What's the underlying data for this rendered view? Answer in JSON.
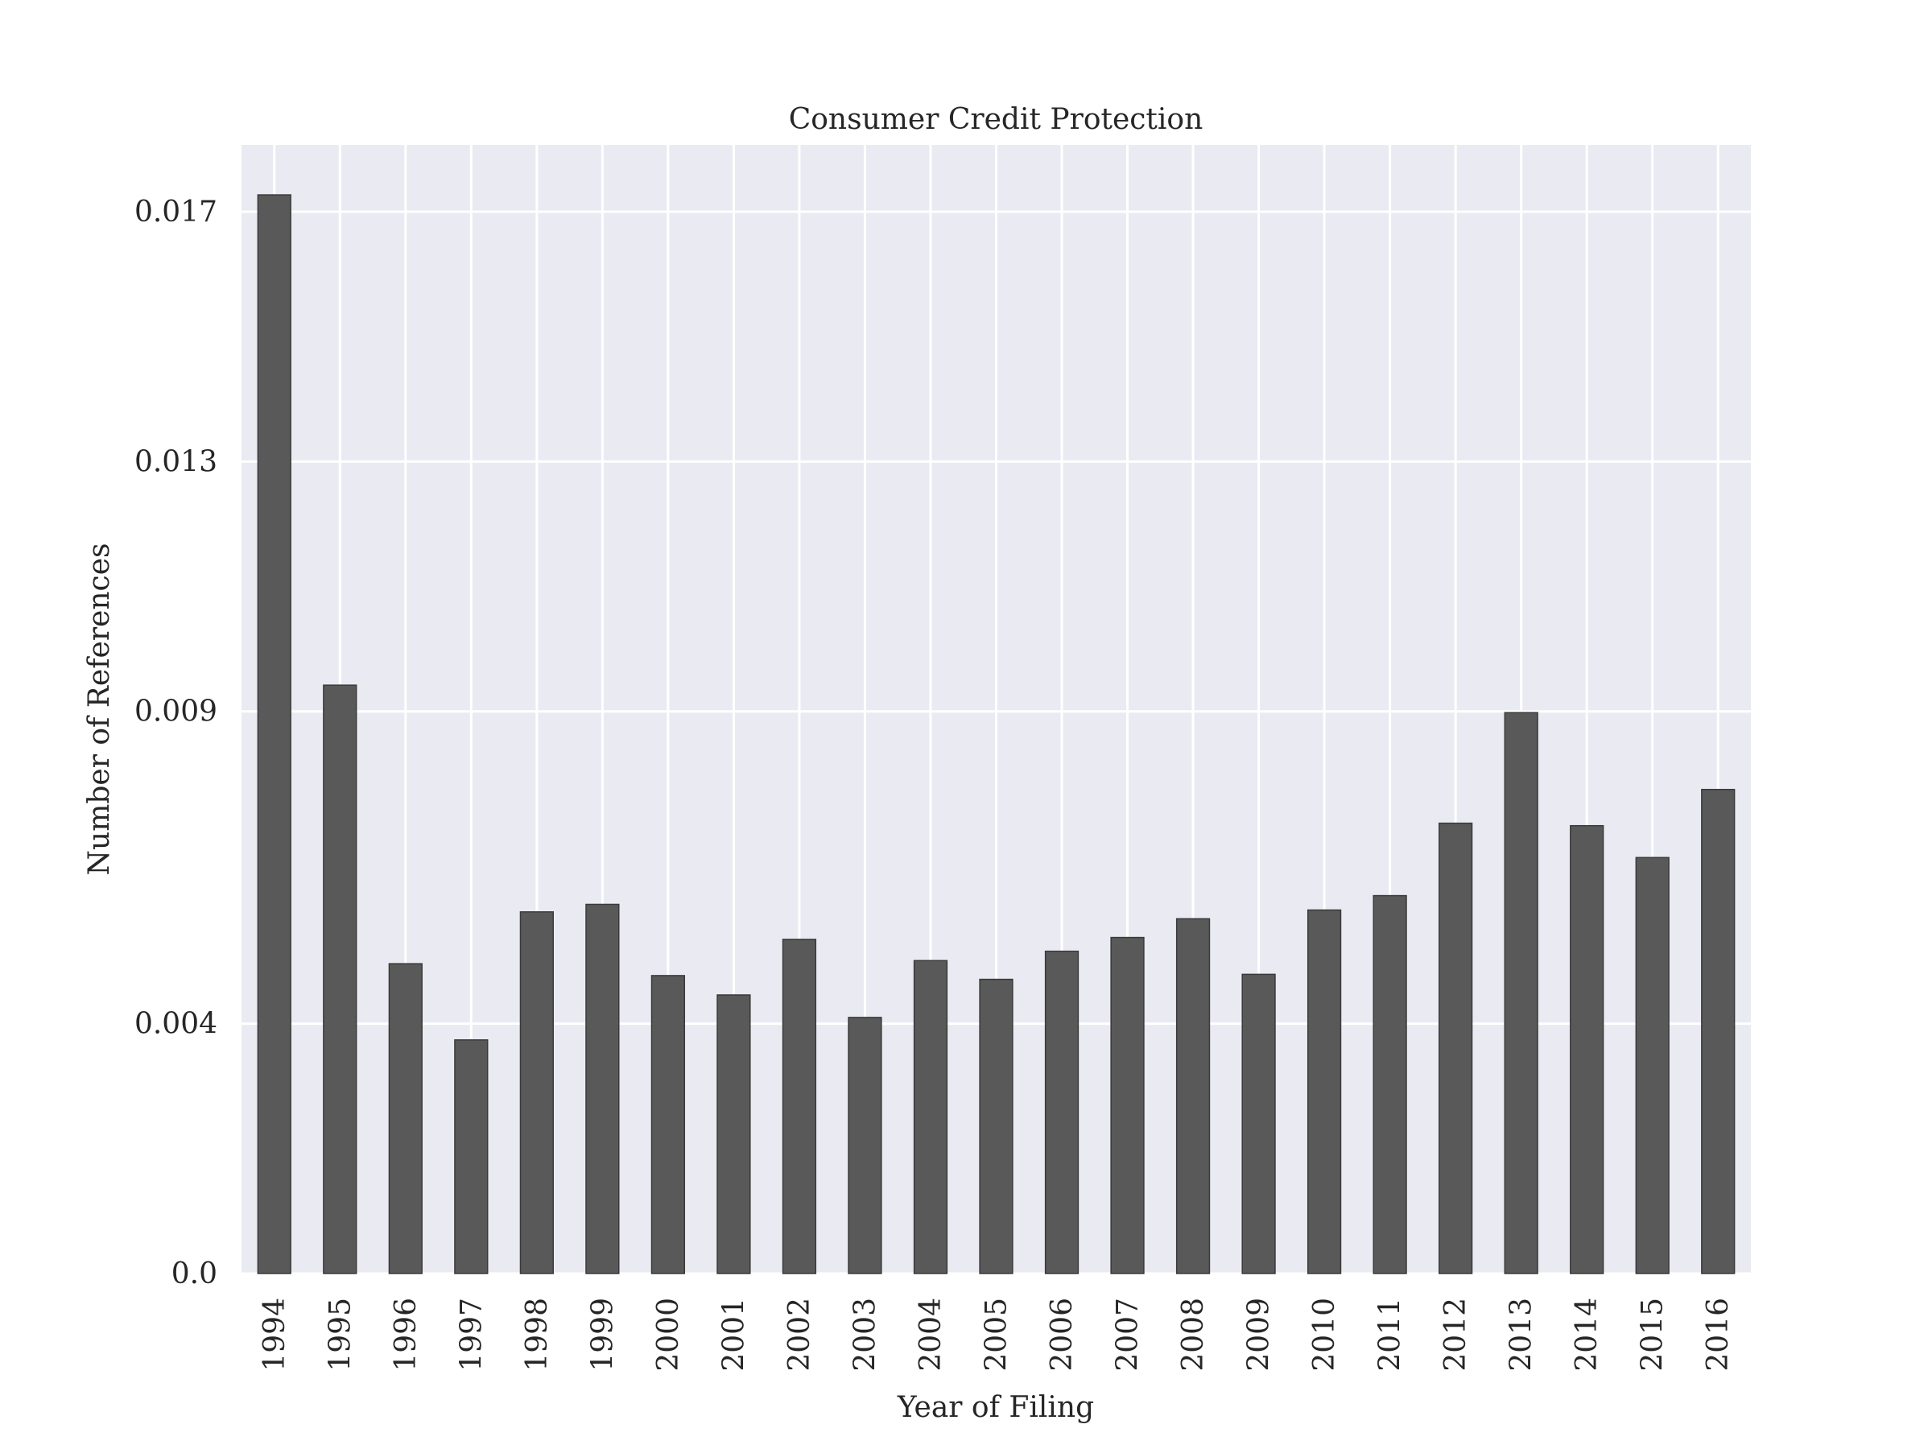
{
  "chart_data": {
    "type": "bar",
    "title": "Consumer Credit Protection",
    "xlabel": "Year of Filing",
    "ylabel": "Number of References",
    "categories": [
      "1994",
      "1995",
      "1996",
      "1997",
      "1998",
      "1999",
      "2000",
      "2001",
      "2002",
      "2003",
      "2004",
      "2005",
      "2006",
      "2007",
      "2008",
      "2009",
      "2010",
      "2011",
      "2012",
      "2013",
      "2014",
      "2015",
      "2016"
    ],
    "values": [
      0.01727,
      0.00942,
      0.00496,
      0.00374,
      0.00579,
      0.00591,
      0.00477,
      0.00446,
      0.00535,
      0.0041,
      0.00501,
      0.00471,
      0.00516,
      0.00538,
      0.00568,
      0.00479,
      0.00582,
      0.00605,
      0.00721,
      0.00898,
      0.00717,
      0.00666,
      0.00775
    ],
    "yticks": [
      0.0,
      0.004,
      0.009,
      0.013,
      0.017
    ],
    "ytick_labels": [
      "0.0",
      "0.004",
      "0.009",
      "0.013",
      "0.017"
    ],
    "ylim": [
      0,
      0.01807
    ],
    "grid": true,
    "colors": {
      "plot_background": "#eaeaf2",
      "bar_fill": "#595959",
      "bar_edge": "#3a3a3a",
      "grid": "#ffffff",
      "text": "#262626"
    }
  }
}
